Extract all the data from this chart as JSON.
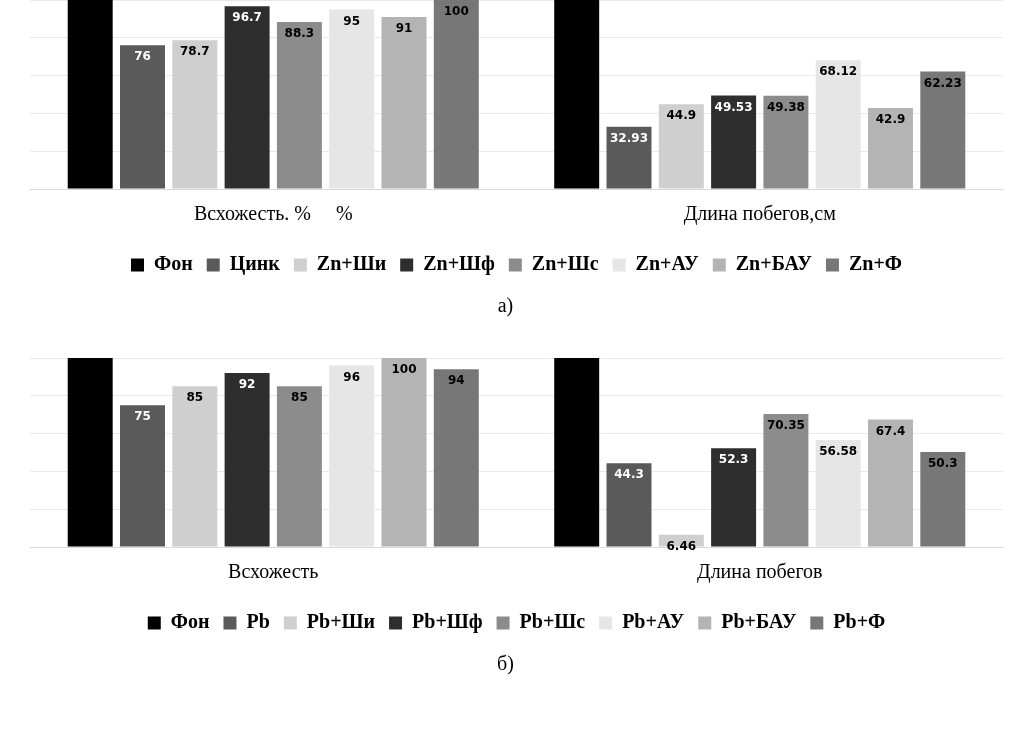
{
  "chart_data": [
    {
      "type": "bar",
      "categories": [
        "Всхожесть. %     %",
        "Длина побегов,см"
      ],
      "ylim": [
        0,
        100
      ],
      "yticks": [
        {
          "value": 0,
          "label": null
        },
        {
          "value": 20,
          "label": null
        },
        {
          "value": 40,
          "label": null
        },
        {
          "value": 60,
          "label": null
        },
        {
          "value": 80,
          "label": null
        },
        {
          "value": 100,
          "label": null
        }
      ],
      "grid": "y",
      "tick_labels": "x",
      "legend": "bottom",
      "annotations": [
        "а)"
      ],
      "series": [
        {
          "name": "Фон",
          "color": "#000000",
          "values": [
            100,
            100
          ],
          "value_labels": [
            null,
            null
          ]
        },
        {
          "name": "Цинк",
          "color": "#5a5a5a",
          "values": [
            76,
            32.93
          ],
          "value_labels": [
            "76",
            "32.93"
          ]
        },
        {
          "name": "Zn+Ши",
          "color": "#cfcfcf",
          "values": [
            78.7,
            44.9
          ],
          "value_labels": [
            "78.7",
            "44.9"
          ]
        },
        {
          "name": "Zn+Шф",
          "color": "#2e2e2e",
          "values": [
            96.7,
            49.53
          ],
          "value_labels": [
            "96.7",
            "49.53"
          ]
        },
        {
          "name": "Zn+Шс",
          "color": "#8c8c8c",
          "values": [
            88.3,
            49.38
          ],
          "value_labels": [
            "88.3",
            "49.38"
          ]
        },
        {
          "name": "Zn+АУ",
          "color": "#e6e6e6",
          "values": [
            95,
            68.12
          ],
          "value_labels": [
            "95",
            "68.12"
          ]
        },
        {
          "name": "Zn+БАУ",
          "color": "#b4b4b4",
          "values": [
            91,
            42.9
          ],
          "value_labels": [
            "91",
            "42.9"
          ]
        },
        {
          "name": "Zn+Ф",
          "color": "#777777",
          "values": [
            100,
            62.23
          ],
          "value_labels": [
            "100",
            "62.23"
          ]
        }
      ]
    },
    {
      "type": "bar",
      "categories": [
        "Всхожесть",
        "Длина побегов"
      ],
      "ylim": [
        0,
        100
      ],
      "yticks": [
        {
          "value": 0,
          "label": null
        },
        {
          "value": 20,
          "label": null
        },
        {
          "value": 40,
          "label": null
        },
        {
          "value": 60,
          "label": null
        },
        {
          "value": 80,
          "label": null
        },
        {
          "value": 100,
          "label": null
        }
      ],
      "grid": "y",
      "tick_labels": "x",
      "legend": "bottom",
      "annotations": [
        "б)"
      ],
      "series": [
        {
          "name": "Фон",
          "color": "#000000",
          "values": [
            100,
            100
          ],
          "value_labels": [
            null,
            null
          ]
        },
        {
          "name": "Pb",
          "color": "#5a5a5a",
          "values": [
            75,
            44.3
          ],
          "value_labels": [
            "75",
            "44.3"
          ]
        },
        {
          "name": "Pb+Ши",
          "color": "#cfcfcf",
          "values": [
            85,
            6.46
          ],
          "value_labels": [
            "85",
            "6.46"
          ]
        },
        {
          "name": "Pb+Шф",
          "color": "#2e2e2e",
          "values": [
            92,
            52.3
          ],
          "value_labels": [
            "92",
            "52.3"
          ]
        },
        {
          "name": "Pb+Шс",
          "color": "#8c8c8c",
          "values": [
            85,
            70.35
          ],
          "value_labels": [
            "85",
            "70.35"
          ]
        },
        {
          "name": "Pb+АУ",
          "color": "#e6e6e6",
          "values": [
            96,
            56.58
          ],
          "value_labels": [
            "96",
            "56.58"
          ]
        },
        {
          "name": "Pb+БАУ",
          "color": "#b4b4b4",
          "values": [
            100,
            67.4
          ],
          "value_labels": [
            "100",
            "67.4"
          ]
        },
        {
          "name": "Pb+Ф",
          "color": "#777777",
          "values": [
            94,
            50.3
          ],
          "value_labels": [
            "94",
            "50.3"
          ]
        }
      ]
    }
  ]
}
